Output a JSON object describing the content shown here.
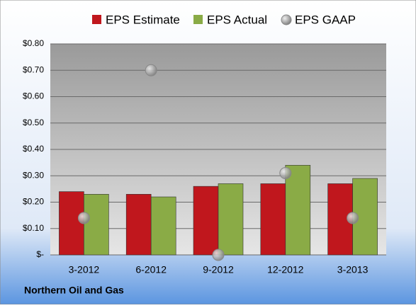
{
  "chart_data": {
    "type": "bar",
    "title": "Northern Oil and Gas",
    "categories": [
      "3-2012",
      "6-2012",
      "9-2012",
      "12-2012",
      "3-2013"
    ],
    "series": [
      {
        "name": "EPS Estimate",
        "color": "#c0171d",
        "values": [
          0.24,
          0.23,
          0.26,
          0.27,
          0.27
        ]
      },
      {
        "name": "EPS Actual",
        "color": "#8aab46",
        "values": [
          0.23,
          0.22,
          0.27,
          0.34,
          0.29
        ]
      },
      {
        "name": "EPS GAAP",
        "color": "#b4b4b4",
        "marker": "point",
        "values": [
          0.14,
          0.7,
          0.0,
          0.31,
          0.14
        ]
      }
    ],
    "ylim": [
      0,
      0.8
    ],
    "yticks": [
      {
        "value": 0,
        "label": "$-"
      },
      {
        "value": 0.1,
        "label": "$0.10"
      },
      {
        "value": 0.2,
        "label": "$0.20"
      },
      {
        "value": 0.3,
        "label": "$0.30"
      },
      {
        "value": 0.4,
        "label": "$0.40"
      },
      {
        "value": 0.5,
        "label": "$0.50"
      },
      {
        "value": 0.6,
        "label": "$0.60"
      },
      {
        "value": 0.7,
        "label": "$0.70"
      },
      {
        "value": 0.8,
        "label": "$0.80"
      }
    ],
    "grid": true,
    "legend": "top"
  }
}
